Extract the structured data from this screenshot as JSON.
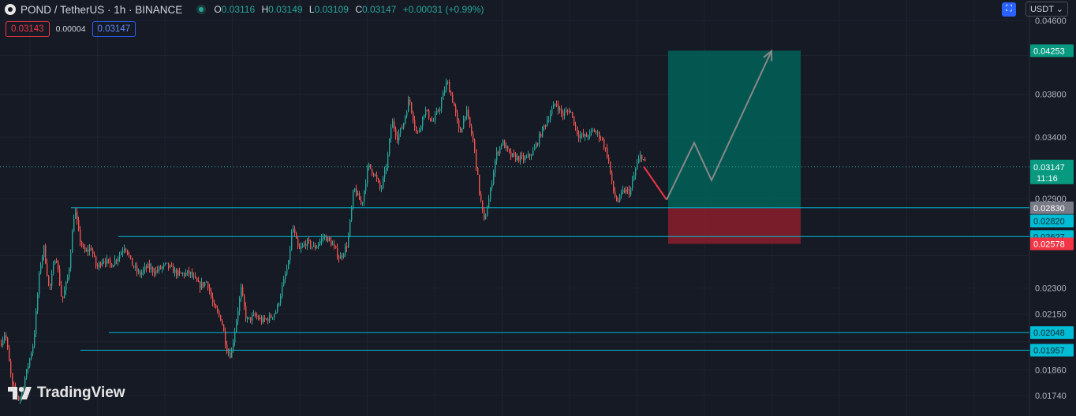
{
  "header": {
    "symbol_title": "POND / TetherUS · 1h · BINANCE",
    "open_key": "O",
    "open_val": "0.03116",
    "high_key": "H",
    "high_val": "0.03149",
    "low_key": "L",
    "low_val": "0.03109",
    "close_key": "C",
    "close_val": "0.03147",
    "change": "+0.00031 (+0.99%)"
  },
  "trade_boxes": {
    "sell_price": "0.03143",
    "spread": "0.00004",
    "buy_price": "0.03147"
  },
  "currency_selector": "USDT",
  "logo_text": "TradingView",
  "colors": {
    "up": "#26a69a",
    "down": "#ef5350",
    "hline": "#00bcd4",
    "profit_zone": "#00695c",
    "stop_zone": "#8b1e2d",
    "projection": "#888888",
    "short_move": "#f23645",
    "background": "#161a25"
  },
  "chart_data": {
    "type": "candlestick",
    "y_scale": "log",
    "ylim": [
      0.0165,
      0.0485
    ],
    "y_ticks": [
      "0.04600",
      "0.03800",
      "0.03400",
      "0.02900",
      "0.02300",
      "0.02150",
      "0.01860",
      "0.01740"
    ],
    "hidden_ticks": [
      "0.04200",
      "0.02500",
      "0.02000"
    ],
    "price_path": [
      [
        0,
        0.0199
      ],
      [
        6,
        0.0205
      ],
      [
        15,
        0.0178
      ],
      [
        24,
        0.0172
      ],
      [
        33,
        0.0185
      ],
      [
        42,
        0.02
      ],
      [
        50,
        0.0243
      ],
      [
        55,
        0.0255
      ],
      [
        62,
        0.0228
      ],
      [
        70,
        0.0252
      ],
      [
        78,
        0.0222
      ],
      [
        86,
        0.0238
      ],
      [
        94,
        0.0283
      ],
      [
        100,
        0.0262
      ],
      [
        106,
        0.0252
      ],
      [
        115,
        0.0255
      ],
      [
        122,
        0.0242
      ],
      [
        130,
        0.0248
      ],
      [
        140,
        0.0244
      ],
      [
        150,
        0.025
      ],
      [
        158,
        0.0257
      ],
      [
        166,
        0.0245
      ],
      [
        176,
        0.0238
      ],
      [
        186,
        0.0243
      ],
      [
        196,
        0.024
      ],
      [
        210,
        0.0244
      ],
      [
        226,
        0.0238
      ],
      [
        240,
        0.0239
      ],
      [
        252,
        0.0231
      ],
      [
        262,
        0.0234
      ],
      [
        270,
        0.0219
      ],
      [
        280,
        0.0212
      ],
      [
        287,
        0.0196
      ],
      [
        292,
        0.0193
      ],
      [
        298,
        0.0209
      ],
      [
        305,
        0.0229
      ],
      [
        312,
        0.0211
      ],
      [
        322,
        0.0214
      ],
      [
        332,
        0.0211
      ],
      [
        342,
        0.0213
      ],
      [
        350,
        0.0217
      ],
      [
        358,
        0.0232
      ],
      [
        365,
        0.0245
      ],
      [
        370,
        0.027
      ],
      [
        378,
        0.0253
      ],
      [
        388,
        0.0259
      ],
      [
        398,
        0.0255
      ],
      [
        410,
        0.0263
      ],
      [
        420,
        0.0258
      ],
      [
        430,
        0.0248
      ],
      [
        440,
        0.0258
      ],
      [
        448,
        0.0298
      ],
      [
        458,
        0.0285
      ],
      [
        466,
        0.0316
      ],
      [
        474,
        0.0309
      ],
      [
        482,
        0.0296
      ],
      [
        490,
        0.0318
      ],
      [
        496,
        0.0355
      ],
      [
        503,
        0.034
      ],
      [
        510,
        0.035
      ],
      [
        518,
        0.0376
      ],
      [
        528,
        0.0341
      ],
      [
        538,
        0.0365
      ],
      [
        548,
        0.0353
      ],
      [
        557,
        0.0368
      ],
      [
        566,
        0.0393
      ],
      [
        574,
        0.0372
      ],
      [
        582,
        0.0342
      ],
      [
        590,
        0.0365
      ],
      [
        600,
        0.0334
      ],
      [
        607,
        0.0295
      ],
      [
        613,
        0.0273
      ],
      [
        620,
        0.0292
      ],
      [
        628,
        0.0324
      ],
      [
        636,
        0.0336
      ],
      [
        646,
        0.0324
      ],
      [
        656,
        0.0322
      ],
      [
        666,
        0.0321
      ],
      [
        676,
        0.0328
      ],
      [
        686,
        0.0345
      ],
      [
        696,
        0.036
      ],
      [
        704,
        0.0372
      ],
      [
        712,
        0.036
      ],
      [
        722,
        0.0365
      ],
      [
        732,
        0.0342
      ],
      [
        742,
        0.034
      ],
      [
        752,
        0.0346
      ],
      [
        762,
        0.0339
      ],
      [
        770,
        0.0323
      ],
      [
        776,
        0.0297
      ],
      [
        782,
        0.0287
      ],
      [
        790,
        0.0296
      ],
      [
        798,
        0.0295
      ],
      [
        806,
        0.0315
      ],
      [
        812,
        0.0325
      ],
      [
        818,
        0.0316
      ]
    ],
    "current_price": {
      "value": 0.03147,
      "label": "0.03147",
      "timer": "11:16"
    },
    "horizontal_lines": [
      {
        "value": 0.0283,
        "label": "0.02830",
        "x_start": 90
      },
      {
        "value": 0.02627,
        "label": "0.02627",
        "x_start": 150
      },
      {
        "value": 0.02048,
        "label": "0.02048",
        "x_start": 138
      },
      {
        "value": 0.01957,
        "label": "0.01957",
        "x_start": 102
      }
    ],
    "position": {
      "type": "long",
      "entry": 0.0283,
      "target": 0.04253,
      "stop": 0.02578,
      "target_label": "0.04253",
      "stop_label": "0.02578"
    },
    "projection_down": [
      [
        816,
        0.0315
      ],
      [
        845,
        0.0289
      ]
    ],
    "projection_up": [
      [
        845,
        0.0289
      ],
      [
        880,
        0.0335
      ],
      [
        902,
        0.0304
      ],
      [
        978,
        0.0425
      ]
    ]
  }
}
